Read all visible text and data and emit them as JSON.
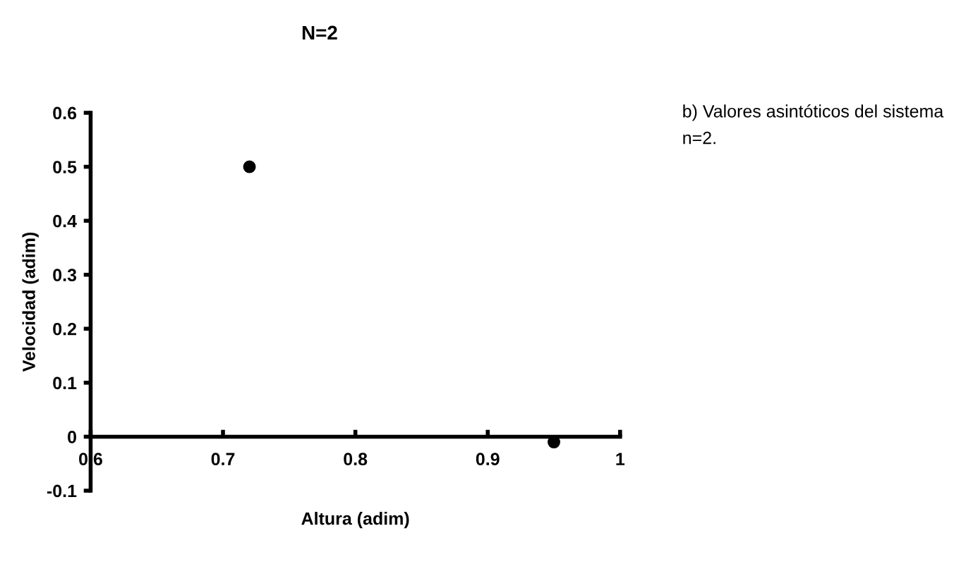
{
  "chart_data": {
    "type": "scatter",
    "title": "N=2",
    "xlabel": "Altura (adim)",
    "ylabel": "Velocidad (adim)",
    "annotations": [
      "b) Valores asintóticos del sistema n=2."
    ],
    "x": [
      0.72,
      0.95
    ],
    "values": [
      0.5,
      -0.01
    ],
    "color": "#000000",
    "marker": "circle",
    "xlim": [
      0.6,
      1
    ],
    "xticks": [
      0.6,
      0.7,
      0.8,
      0.9,
      1
    ],
    "ylim": [
      -0.1,
      0.6
    ],
    "yticks": [
      -0.1,
      0,
      0.1,
      0.2,
      0.3,
      0.4,
      0.5,
      0.6
    ],
    "grid": false,
    "legend": false
  }
}
